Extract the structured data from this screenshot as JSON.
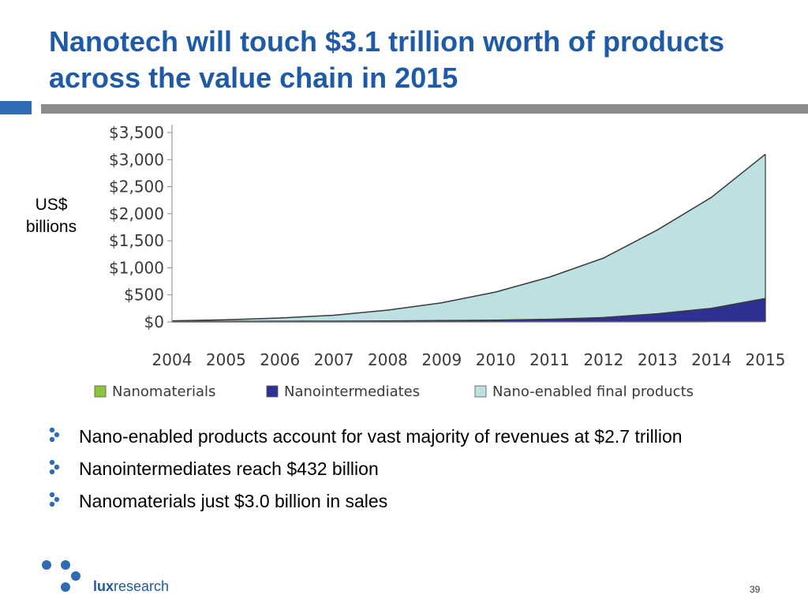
{
  "slide": {
    "title": "Nanotech will touch $3.1 trillion worth of products across the value chain in 2015",
    "y_units": "US$ billions",
    "page_number": "39"
  },
  "bullets": [
    "Nano-enabled products account for vast majority of revenues at $2.7 trillion",
    "Nanointermediates reach $432 billion",
    "Nanomaterials just $3.0 billion in sales"
  ],
  "brand": {
    "prefix": "lux",
    "suffix": "research"
  },
  "colors": {
    "title": "#1f5aa6",
    "nanomaterials": "#8cc63f",
    "nanointermediates": "#2e3192",
    "final_products": "#bde0e3",
    "outline": "#3a3a3a"
  },
  "chart_data": {
    "type": "area",
    "stacked": true,
    "categories": [
      "2004",
      "2005",
      "2006",
      "2007",
      "2008",
      "2009",
      "2010",
      "2011",
      "2012",
      "2013",
      "2014",
      "2015"
    ],
    "ylim": [
      0,
      3500
    ],
    "yticks": [
      "$0",
      "$500",
      "$1,000",
      "$1,500",
      "$2,000",
      "$2,500",
      "$3,000",
      "$3,500"
    ],
    "ytick_values": [
      0,
      500,
      1000,
      1500,
      2000,
      2500,
      3000,
      3500
    ],
    "legend_position": "bottom",
    "series": [
      {
        "name": "Nanomaterials",
        "color": "#8cc63f",
        "values": [
          0.2,
          0.3,
          0.4,
          0.5,
          0.6,
          0.8,
          1.0,
          1.3,
          1.6,
          2.0,
          2.5,
          3.0
        ]
      },
      {
        "name": "Nanointermediates",
        "color": "#2e3192",
        "values": [
          8,
          10,
          12,
          14,
          18,
          24,
          32,
          48,
          80,
          150,
          250,
          432
        ]
      },
      {
        "name": "Nano-enabled final products",
        "color": "#bde0e3",
        "values": [
          12,
          30,
          60,
          110,
          200,
          330,
          520,
          780,
          1100,
          1550,
          2050,
          2665
        ]
      }
    ]
  }
}
